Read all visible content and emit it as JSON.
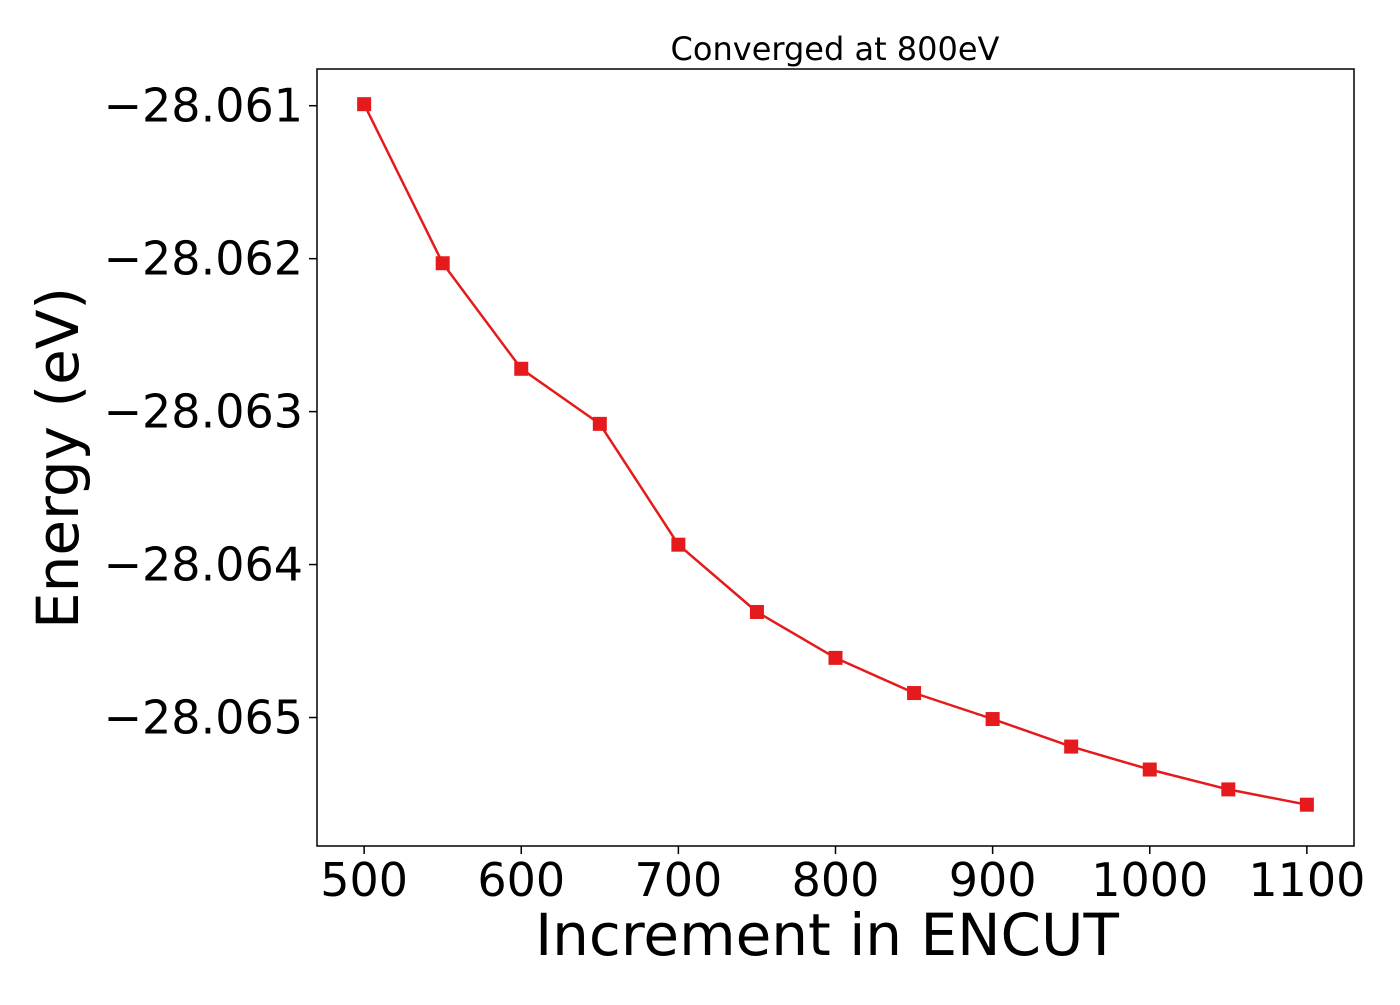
{
  "chart_data": {
    "type": "line",
    "title": "Converged at 800eV",
    "xlabel": "Increment in ENCUT",
    "ylabel": "Energy (eV)",
    "x": [
      500,
      550,
      600,
      650,
      700,
      750,
      800,
      850,
      900,
      950,
      1000,
      1050,
      1100
    ],
    "series": [
      {
        "values": [
          -28.06099,
          -28.06203,
          -28.06272,
          -28.06308,
          -28.06387,
          -28.06431,
          -28.06461,
          -28.06484,
          -28.06501,
          -28.06519,
          -28.06534,
          -28.06547,
          -28.06557
        ],
        "color": "#e41a1c",
        "marker": "square"
      }
    ],
    "xlim": [
      470,
      1130
    ],
    "ylim": [
      -28.06584,
      -28.06076
    ],
    "xticks": [
      500,
      600,
      700,
      800,
      900,
      1000,
      1100
    ],
    "xtick_labels": [
      "500",
      "600",
      "700",
      "800",
      "900",
      "1000",
      "1100"
    ],
    "yticks": [
      -28.061,
      -28.062,
      -28.063,
      -28.064,
      -28.065
    ],
    "ytick_labels": [
      "−28.061",
      "−28.062",
      "−28.063",
      "−28.064",
      "−28.065"
    ],
    "grid": false,
    "legend": "none"
  }
}
